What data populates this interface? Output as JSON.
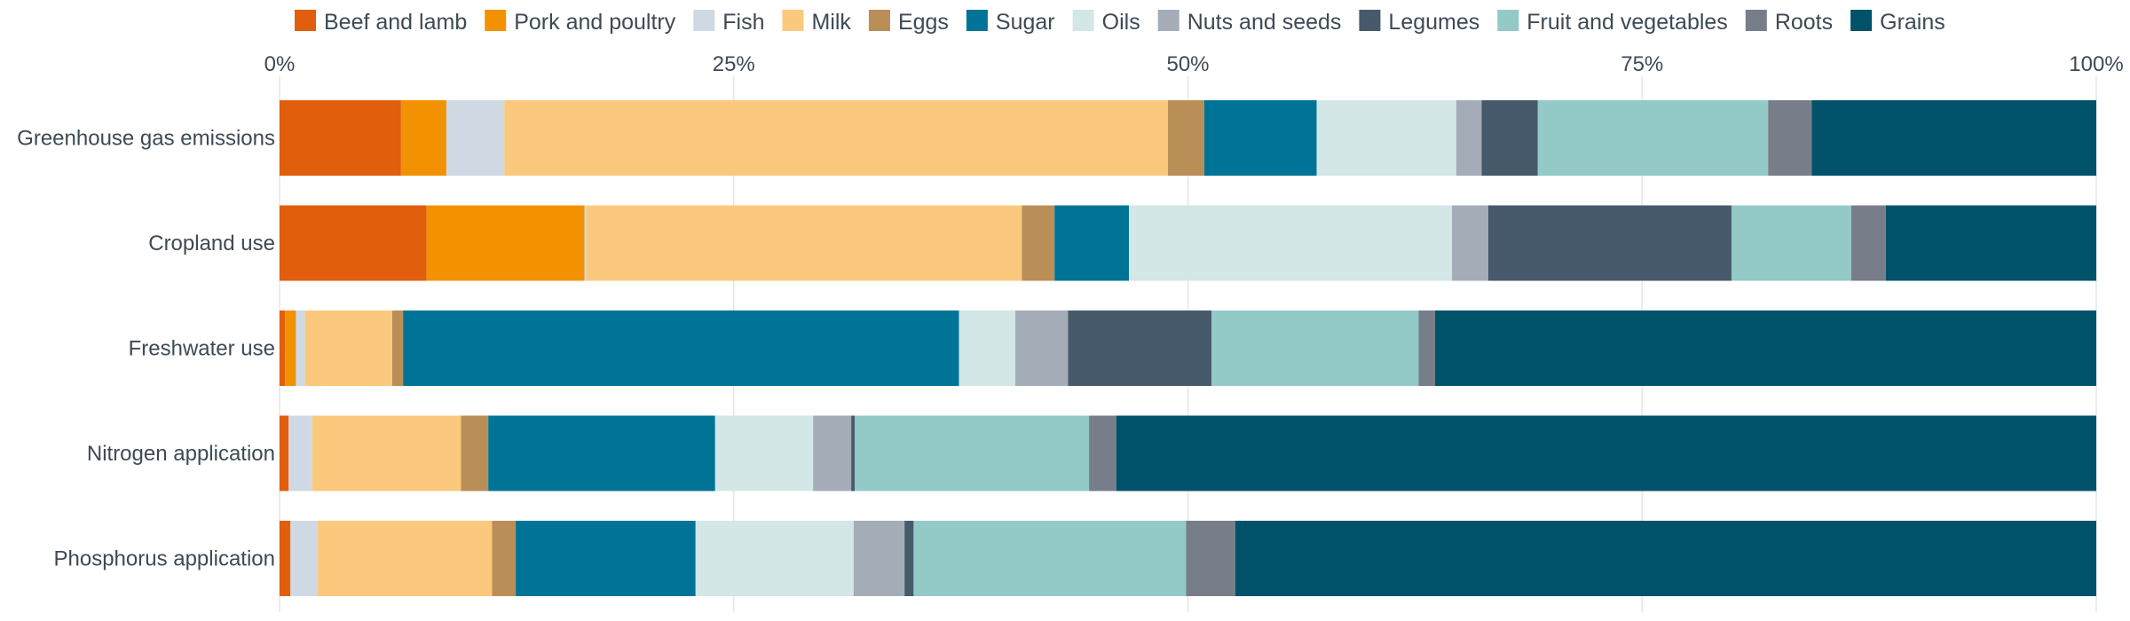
{
  "chart_data": {
    "type": "bar",
    "orientation": "horizontal",
    "stacked": true,
    "title": "",
    "xlabel": "",
    "ylabel": "",
    "xlim": [
      0,
      100
    ],
    "x_ticks": [
      "0%",
      "25%",
      "50%",
      "75%",
      "100%"
    ],
    "legend_position": "top",
    "grid": true,
    "categories": [
      "Greenhouse gas emissions",
      "Cropland use",
      "Freshwater use",
      "Nitrogen application",
      "Phosphorus application"
    ],
    "series": [
      {
        "name": "Beef and lamb",
        "color": "#e05e0c",
        "values": [
          6.7,
          8.1,
          0.3,
          0.5,
          0.6
        ]
      },
      {
        "name": "Pork and poultry",
        "color": "#f39200",
        "values": [
          2.5,
          8.7,
          0.6,
          0.0,
          0.0
        ]
      },
      {
        "name": "Fish",
        "color": "#cfd9e3",
        "values": [
          3.2,
          0.1,
          0.5,
          1.3,
          1.5
        ]
      },
      {
        "name": "Milk",
        "color": "#fbc97d",
        "values": [
          36.6,
          24.0,
          4.8,
          8.2,
          9.6
        ]
      },
      {
        "name": "Eggs",
        "color": "#b98f57",
        "values": [
          2.0,
          1.8,
          0.6,
          1.5,
          1.3
        ]
      },
      {
        "name": "Sugar",
        "color": "#007496",
        "values": [
          6.2,
          4.1,
          30.6,
          12.5,
          9.9
        ]
      },
      {
        "name": "Oils",
        "color": "#d2e7e6",
        "values": [
          7.7,
          17.8,
          3.1,
          5.4,
          8.7
        ]
      },
      {
        "name": "Nuts and seeds",
        "color": "#a4adb7",
        "values": [
          1.4,
          2.0,
          2.9,
          2.1,
          2.8
        ]
      },
      {
        "name": "Legumes",
        "color": "#465a6c",
        "values": [
          3.1,
          13.4,
          7.9,
          0.2,
          0.5
        ]
      },
      {
        "name": "Fruit and vegetables",
        "color": "#93c9c7",
        "values": [
          12.7,
          6.6,
          11.4,
          12.9,
          15.0
        ]
      },
      {
        "name": "Roots",
        "color": "#787e89",
        "values": [
          2.4,
          1.9,
          0.9,
          1.5,
          2.7
        ]
      },
      {
        "name": "Grains",
        "color": "#00526b",
        "values": [
          15.7,
          11.6,
          36.4,
          54.0,
          47.4
        ]
      }
    ]
  }
}
